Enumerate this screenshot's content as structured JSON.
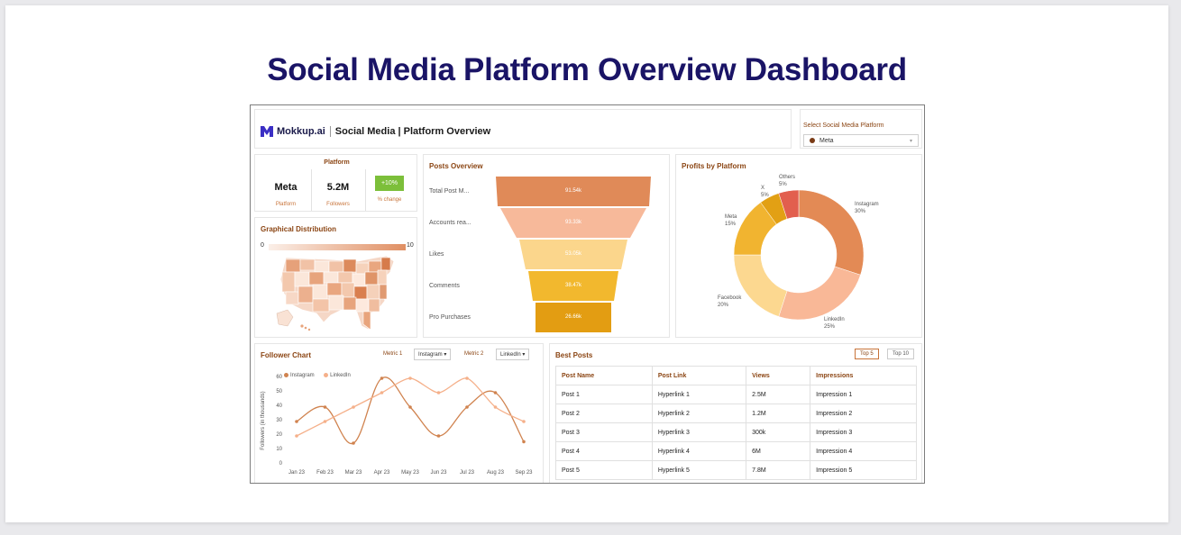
{
  "page": {
    "title": "Social Media Platform Overview Dashboard"
  },
  "header": {
    "brand": "Mokkup.ai",
    "title": "Social Media | Platform Overview"
  },
  "selector": {
    "label": "Select Social Media Platform",
    "value": "Meta"
  },
  "kpis": {
    "title": "Platform",
    "items": [
      {
        "value": "Meta",
        "label": "Platform"
      },
      {
        "value": "5.2M",
        "label": "Followers"
      },
      {
        "value": "+10%",
        "label": "% change"
      }
    ]
  },
  "geo": {
    "title": "Graphical Distribution",
    "min": "0",
    "max": "10"
  },
  "funnel": {
    "title": "Posts Overview",
    "stages": [
      {
        "label": "Total Post M...",
        "value": "91.54k",
        "color": "#e08a58"
      },
      {
        "label": "Accounts rea...",
        "value": "93.33k",
        "color": "#f7b99a"
      },
      {
        "label": "Likes",
        "value": "53.05k",
        "color": "#fbd68c"
      },
      {
        "label": "Comments",
        "value": "38.47k",
        "color": "#f2b82e"
      },
      {
        "label": "Pro Purchases",
        "value": "26.66k",
        "color": "#e39d12"
      }
    ]
  },
  "profits": {
    "title": "Profits by Platform",
    "slices": [
      {
        "name": "Instagram",
        "pct": "30%",
        "value": 30,
        "color": "#e38a55"
      },
      {
        "name": "LinkedIn",
        "pct": "25%",
        "value": 25,
        "color": "#f9b897"
      },
      {
        "name": "Facebook",
        "pct": "20%",
        "value": 20,
        "color": "#fcd890"
      },
      {
        "name": "Meta",
        "pct": "15%",
        "value": 15,
        "color": "#f1b430"
      },
      {
        "name": "X",
        "pct": "5%",
        "value": 5,
        "color": "#e2a014"
      },
      {
        "name": "Others",
        "pct": "5%",
        "value": 5,
        "color": "#e25f4e"
      }
    ]
  },
  "follower": {
    "title": "Follower Chart",
    "metric1_label": "Metric 1",
    "metric1_value": "Instagram",
    "metric2_label": "Metric 2",
    "metric2_value": "LinkedIn",
    "ylabel": "Followers (in thousands)"
  },
  "chart_data": {
    "type": "line",
    "x": [
      "Jan 23",
      "Feb 23",
      "Mar 23",
      "Apr 23",
      "May 23",
      "Jun 23",
      "Jul 23",
      "Aug 23",
      "Sep 23"
    ],
    "ylim": [
      0,
      60
    ],
    "yticks": [
      0,
      10,
      20,
      30,
      40,
      50,
      60
    ],
    "ylabel": "Followers (in thousands)",
    "legend": "top-left",
    "series": [
      {
        "name": "Instagram",
        "color": "#d0834f",
        "values": [
          30,
          40,
          15,
          60,
          40,
          20,
          40,
          50,
          16
        ]
      },
      {
        "name": "LinkedIn",
        "color": "#f5b08a",
        "values": [
          20,
          30,
          40,
          50,
          60,
          50,
          60,
          40,
          30
        ]
      }
    ]
  },
  "best_posts": {
    "title": "Best Posts",
    "btn_top5": "Top 5",
    "btn_top10": "Top 10",
    "columns": [
      "Post Name",
      "Post Link",
      "Views",
      "Impressions"
    ],
    "rows": [
      [
        "Post 1",
        "Hyperlink 1",
        "2.5M",
        "Impression 1"
      ],
      [
        "Post 2",
        "Hyperlink 2",
        "1.2M",
        "Impression 2"
      ],
      [
        "Post 3",
        "Hyperlink 3",
        "300k",
        "Impression 3"
      ],
      [
        "Post 4",
        "Hyperlink 4",
        "6M",
        "Impression 4"
      ],
      [
        "Post 5",
        "Hyperlink 5",
        "7.8M",
        "Impression 5"
      ]
    ]
  }
}
